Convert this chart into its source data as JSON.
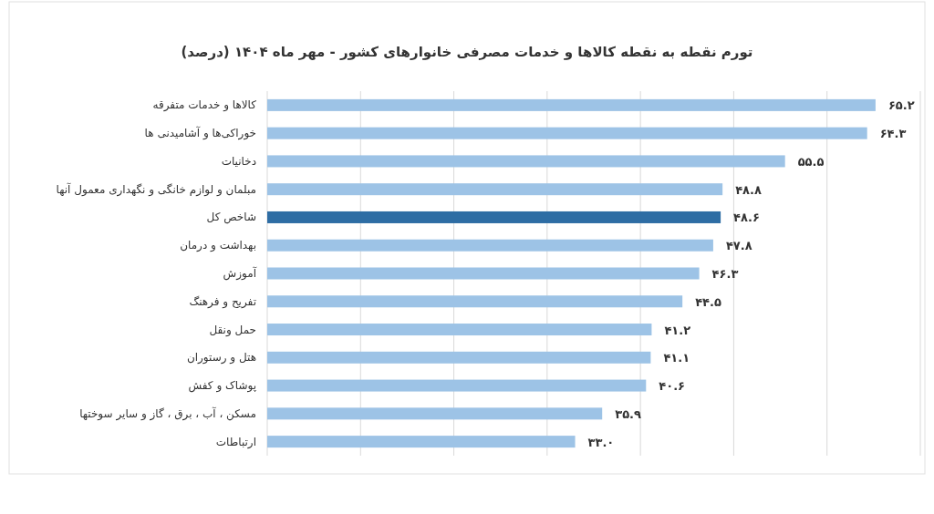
{
  "chart_data": {
    "type": "bar",
    "orientation": "horizontal",
    "title": "تورم نقطه به نقطه کالاها و خدمات مصرفی خانوارهای کشور - مهر ماه ۱۴۰۴ (درصد)",
    "categories": [
      "کالاها و خدمات متفرقه",
      "خوراکی‌ها و آشامیدنی ها",
      "دخانیات",
      "مبلمان و لوازم خانگی و نگهداری معمول آنها",
      "شاخص کل",
      "بهداشت و درمان",
      "آموزش",
      "تفریح و فرهنگ",
      "حمل ونقل",
      "هتل و رستوران",
      "پوشاک و کفش",
      "مسکن ، آب ، برق ، گاز و سایر سوختها",
      "ارتباطات"
    ],
    "values": [
      65.2,
      64.3,
      55.5,
      48.8,
      48.6,
      47.8,
      46.3,
      44.5,
      41.2,
      41.1,
      40.6,
      35.9,
      33.0
    ],
    "value_labels": [
      "۶۵.۲",
      "۶۴.۳",
      "۵۵.۵",
      "۴۸.۸",
      "۴۸.۶",
      "۴۷.۸",
      "۴۶.۳",
      "۴۴.۵",
      "۴۱.۲",
      "۴۱.۱",
      "۴۰.۶",
      "۳۵.۹",
      "۳۳.۰"
    ],
    "colors": [
      "#9dc3e6",
      "#9dc3e6",
      "#9dc3e6",
      "#9dc3e6",
      "#2e6da4",
      "#9dc3e6",
      "#9dc3e6",
      "#9dc3e6",
      "#9dc3e6",
      "#9dc3e6",
      "#9dc3e6",
      "#9dc3e6",
      "#9dc3e6"
    ],
    "xlim": [
      0,
      70
    ],
    "xticks": [
      {
        "value": 0,
        "label": null
      },
      {
        "value": 10,
        "label": null
      },
      {
        "value": 20,
        "label": null
      },
      {
        "value": 30,
        "label": null
      },
      {
        "value": 40,
        "label": null
      },
      {
        "value": 50,
        "label": null
      },
      {
        "value": 60,
        "label": null
      },
      {
        "value": 70,
        "label": null
      }
    ],
    "grid": "x",
    "tick_labels": "y"
  }
}
